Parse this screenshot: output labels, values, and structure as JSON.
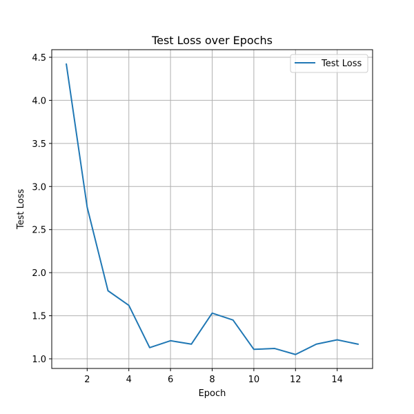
{
  "chart_data": {
    "type": "line",
    "title": "Test Loss over Epochs",
    "xlabel": "Epoch",
    "ylabel": "Test Loss",
    "xlim": [
      0.3,
      15.7
    ],
    "ylim": [
      0.888,
      4.588
    ],
    "grid": true,
    "legend_position": "top-right",
    "xticks": [
      2,
      4,
      6,
      8,
      10,
      12,
      14
    ],
    "xtick_labels": [
      "2",
      "4",
      "6",
      "8",
      "10",
      "12",
      "14"
    ],
    "yticks": [
      1.0,
      1.5,
      2.0,
      2.5,
      3.0,
      3.5,
      4.0,
      4.5
    ],
    "ytick_labels": [
      "1.0",
      "1.5",
      "2.0",
      "2.5",
      "3.0",
      "3.5",
      "4.0",
      "4.5"
    ],
    "series": [
      {
        "name": "Test Loss",
        "color": "#1f77b4",
        "x": [
          1,
          2,
          3,
          4,
          5,
          6,
          7,
          8,
          9,
          10,
          11,
          12,
          13,
          14,
          15
        ],
        "y": [
          4.42,
          2.76,
          1.79,
          1.62,
          1.13,
          1.21,
          1.17,
          1.53,
          1.45,
          1.11,
          1.12,
          1.05,
          1.17,
          1.22,
          1.17
        ]
      }
    ]
  }
}
